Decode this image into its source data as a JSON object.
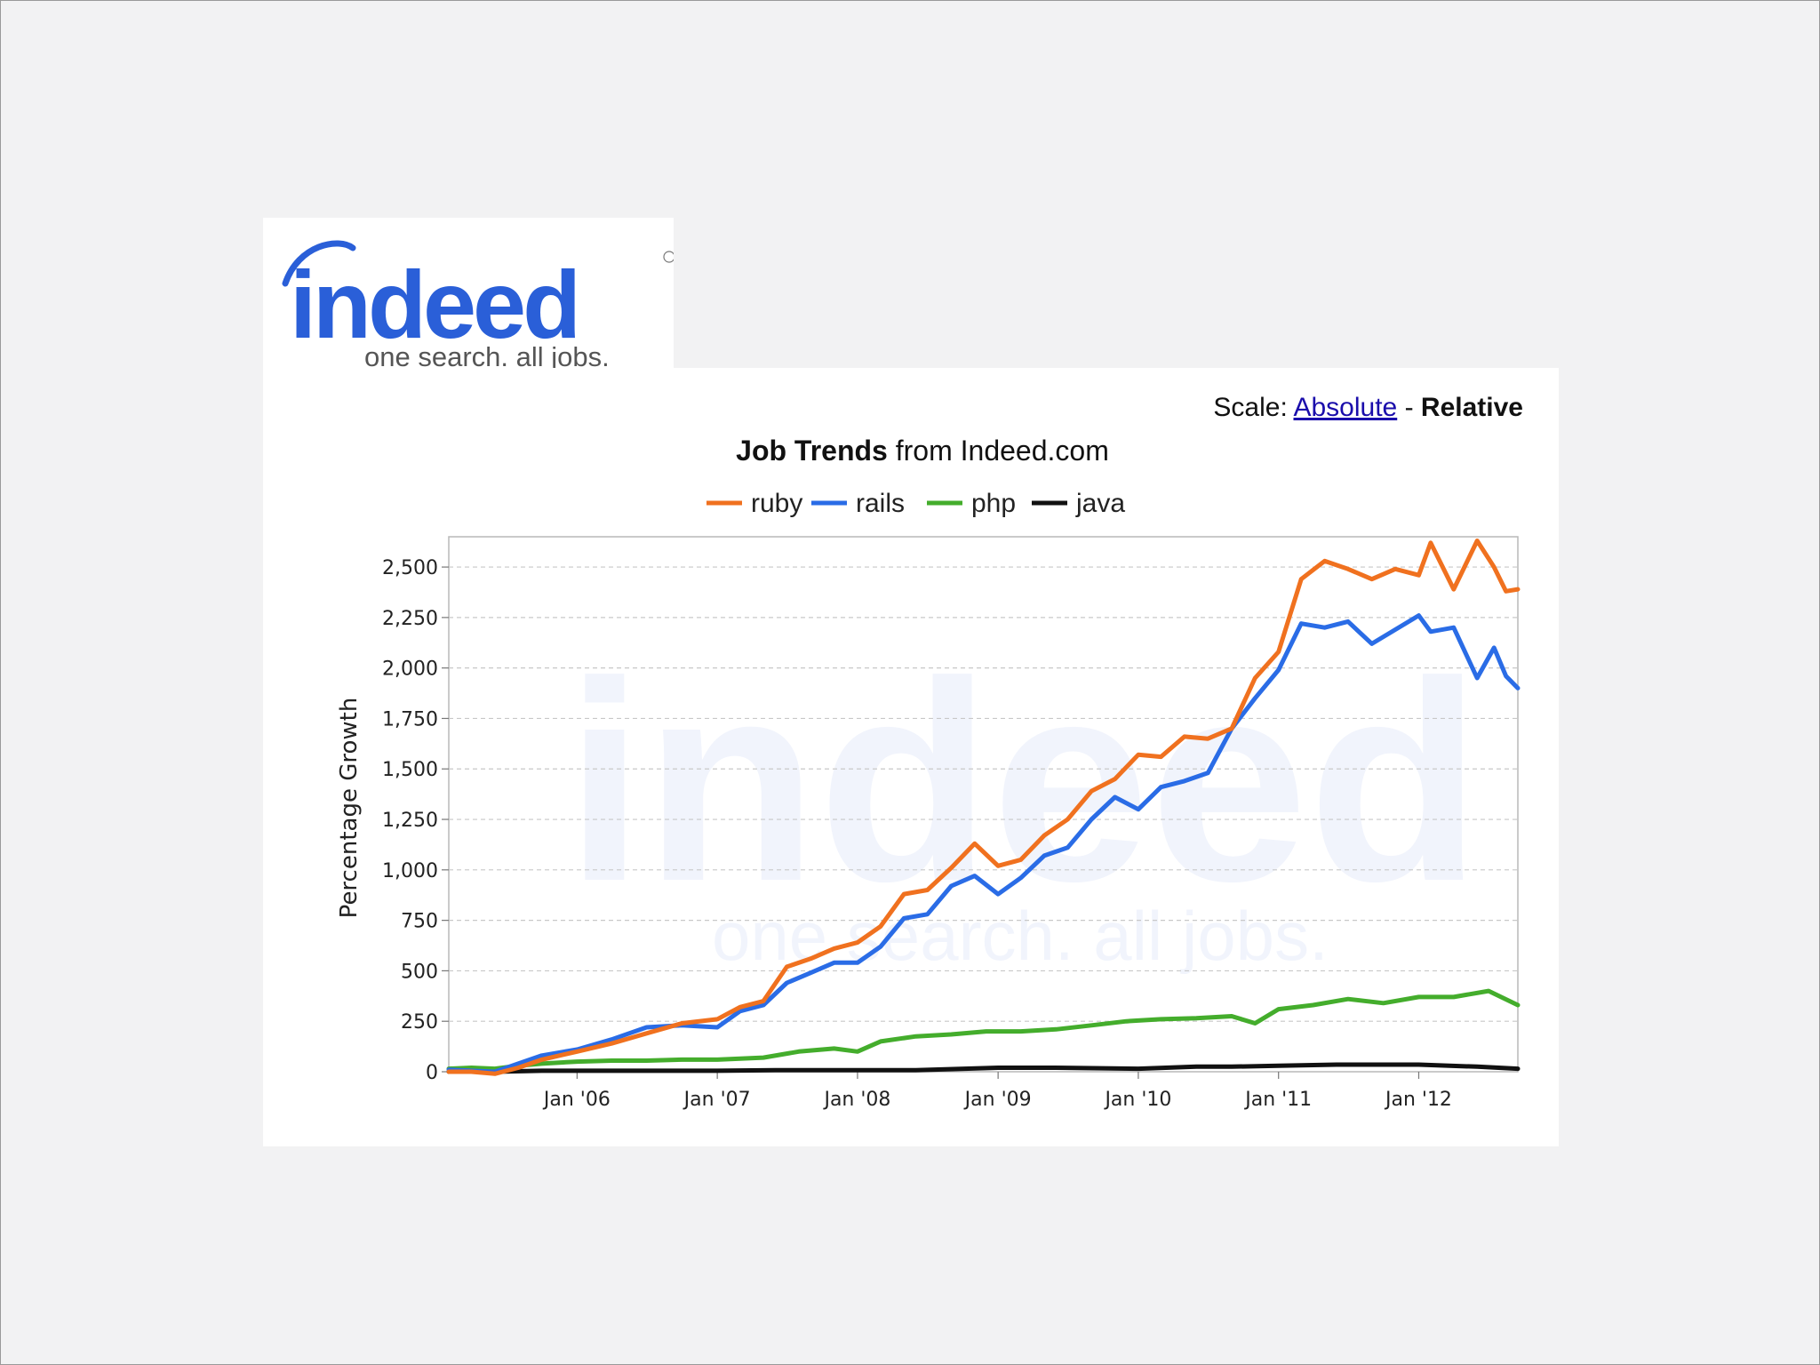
{
  "logo": {
    "wordmark": "indeed",
    "tagline": "one search. all jobs."
  },
  "scale": {
    "label": "Scale:",
    "absolute": "Absolute",
    "separator": "-",
    "relative": "Relative"
  },
  "chart_data": {
    "type": "line",
    "title_bold": "Job Trends",
    "title_rest": "from Indeed.com",
    "ylabel": "Percentage Growth",
    "xlabel": "",
    "ylim": [
      0,
      2650
    ],
    "xlim": [
      "2005-02-01",
      "2012-09-15"
    ],
    "grid": true,
    "legend_position": "top",
    "y_ticks": [
      0,
      250,
      500,
      750,
      1000,
      1250,
      1500,
      1750,
      2000,
      2250,
      2500
    ],
    "y_tick_labels": [
      "0",
      "250",
      "500",
      "750",
      "1,000",
      "1,250",
      "1,500",
      "1,750",
      "2,000",
      "2,250",
      "2,500"
    ],
    "x_ticks": [
      "2006-01-01",
      "2007-01-01",
      "2008-01-01",
      "2009-01-01",
      "2010-01-01",
      "2011-01-01",
      "2012-01-01"
    ],
    "x_tick_labels": [
      "Jan '06",
      "Jan '07",
      "Jan '08",
      "Jan '09",
      "Jan '10",
      "Jan '11",
      "Jan '12"
    ],
    "series": [
      {
        "name": "ruby",
        "color": "#f0711f",
        "points": [
          [
            "2005-02-01",
            0
          ],
          [
            "2005-04-01",
            0
          ],
          [
            "2005-06-01",
            -10
          ],
          [
            "2005-08-01",
            20
          ],
          [
            "2005-10-01",
            60
          ],
          [
            "2006-01-01",
            100
          ],
          [
            "2006-04-01",
            140
          ],
          [
            "2006-07-01",
            190
          ],
          [
            "2006-10-01",
            240
          ],
          [
            "2007-01-01",
            260
          ],
          [
            "2007-03-01",
            320
          ],
          [
            "2007-05-01",
            350
          ],
          [
            "2007-07-01",
            520
          ],
          [
            "2007-09-01",
            560
          ],
          [
            "2007-11-01",
            610
          ],
          [
            "2008-01-01",
            640
          ],
          [
            "2008-03-01",
            720
          ],
          [
            "2008-05-01",
            880
          ],
          [
            "2008-07-01",
            900
          ],
          [
            "2008-09-01",
            1010
          ],
          [
            "2008-11-01",
            1130
          ],
          [
            "2009-01-01",
            1020
          ],
          [
            "2009-03-01",
            1050
          ],
          [
            "2009-05-01",
            1170
          ],
          [
            "2009-07-01",
            1250
          ],
          [
            "2009-09-01",
            1390
          ],
          [
            "2009-11-01",
            1450
          ],
          [
            "2010-01-01",
            1570
          ],
          [
            "2010-03-01",
            1560
          ],
          [
            "2010-05-01",
            1660
          ],
          [
            "2010-07-01",
            1650
          ],
          [
            "2010-09-01",
            1700
          ],
          [
            "2010-11-01",
            1950
          ],
          [
            "2011-01-01",
            2080
          ],
          [
            "2011-03-01",
            2440
          ],
          [
            "2011-05-01",
            2530
          ],
          [
            "2011-07-01",
            2490
          ],
          [
            "2011-09-01",
            2440
          ],
          [
            "2011-11-01",
            2490
          ],
          [
            "2012-01-01",
            2460
          ],
          [
            "2012-02-01",
            2620
          ],
          [
            "2012-04-01",
            2390
          ],
          [
            "2012-06-01",
            2630
          ],
          [
            "2012-07-15",
            2500
          ],
          [
            "2012-08-15",
            2380
          ],
          [
            "2012-09-15",
            2390
          ]
        ]
      },
      {
        "name": "rails",
        "color": "#2a6ce6",
        "points": [
          [
            "2005-02-01",
            10
          ],
          [
            "2005-04-01",
            5
          ],
          [
            "2005-06-01",
            0
          ],
          [
            "2005-08-01",
            40
          ],
          [
            "2005-10-01",
            80
          ],
          [
            "2006-01-01",
            110
          ],
          [
            "2006-04-01",
            160
          ],
          [
            "2006-07-01",
            220
          ],
          [
            "2006-10-01",
            230
          ],
          [
            "2007-01-01",
            220
          ],
          [
            "2007-03-01",
            300
          ],
          [
            "2007-05-01",
            330
          ],
          [
            "2007-07-01",
            440
          ],
          [
            "2007-09-01",
            490
          ],
          [
            "2007-11-01",
            540
          ],
          [
            "2008-01-01",
            540
          ],
          [
            "2008-03-01",
            620
          ],
          [
            "2008-05-01",
            760
          ],
          [
            "2008-07-01",
            780
          ],
          [
            "2008-09-01",
            920
          ],
          [
            "2008-11-01",
            970
          ],
          [
            "2009-01-01",
            880
          ],
          [
            "2009-03-01",
            960
          ],
          [
            "2009-05-01",
            1070
          ],
          [
            "2009-07-01",
            1110
          ],
          [
            "2009-09-01",
            1250
          ],
          [
            "2009-11-01",
            1360
          ],
          [
            "2010-01-01",
            1300
          ],
          [
            "2010-03-01",
            1410
          ],
          [
            "2010-05-01",
            1440
          ],
          [
            "2010-07-01",
            1480
          ],
          [
            "2010-09-01",
            1700
          ],
          [
            "2010-11-01",
            1850
          ],
          [
            "2011-01-01",
            1990
          ],
          [
            "2011-03-01",
            2220
          ],
          [
            "2011-05-01",
            2200
          ],
          [
            "2011-07-01",
            2230
          ],
          [
            "2011-09-01",
            2120
          ],
          [
            "2011-11-01",
            2190
          ],
          [
            "2012-01-01",
            2260
          ],
          [
            "2012-02-01",
            2180
          ],
          [
            "2012-04-01",
            2200
          ],
          [
            "2012-06-01",
            1950
          ],
          [
            "2012-07-15",
            2100
          ],
          [
            "2012-08-15",
            1960
          ],
          [
            "2012-09-15",
            1900
          ]
        ]
      },
      {
        "name": "php",
        "color": "#44ad2c",
        "points": [
          [
            "2005-02-01",
            15
          ],
          [
            "2005-04-01",
            20
          ],
          [
            "2005-06-01",
            15
          ],
          [
            "2005-08-01",
            30
          ],
          [
            "2005-10-01",
            40
          ],
          [
            "2006-01-01",
            50
          ],
          [
            "2006-04-01",
            55
          ],
          [
            "2006-07-01",
            55
          ],
          [
            "2006-10-01",
            60
          ],
          [
            "2007-01-01",
            60
          ],
          [
            "2007-05-01",
            70
          ],
          [
            "2007-08-01",
            100
          ],
          [
            "2007-11-01",
            115
          ],
          [
            "2008-01-01",
            100
          ],
          [
            "2008-03-01",
            150
          ],
          [
            "2008-06-01",
            175
          ],
          [
            "2008-09-01",
            185
          ],
          [
            "2008-12-01",
            200
          ],
          [
            "2009-03-01",
            200
          ],
          [
            "2009-06-01",
            210
          ],
          [
            "2009-09-01",
            230
          ],
          [
            "2009-12-01",
            250
          ],
          [
            "2010-03-01",
            260
          ],
          [
            "2010-06-01",
            265
          ],
          [
            "2010-09-01",
            275
          ],
          [
            "2010-11-01",
            240
          ],
          [
            "2011-01-01",
            310
          ],
          [
            "2011-04-01",
            330
          ],
          [
            "2011-07-01",
            360
          ],
          [
            "2011-10-01",
            340
          ],
          [
            "2012-01-01",
            370
          ],
          [
            "2012-04-01",
            370
          ],
          [
            "2012-07-01",
            400
          ],
          [
            "2012-09-15",
            330
          ]
        ]
      },
      {
        "name": "java",
        "color": "#111111",
        "points": [
          [
            "2005-02-01",
            0
          ],
          [
            "2005-06-01",
            0
          ],
          [
            "2005-10-01",
            5
          ],
          [
            "2006-01-01",
            5
          ],
          [
            "2006-06-01",
            5
          ],
          [
            "2007-01-01",
            5
          ],
          [
            "2007-06-01",
            8
          ],
          [
            "2008-01-01",
            8
          ],
          [
            "2008-06-01",
            8
          ],
          [
            "2009-01-01",
            20
          ],
          [
            "2009-06-01",
            20
          ],
          [
            "2010-01-01",
            15
          ],
          [
            "2010-06-01",
            25
          ],
          [
            "2010-09-01",
            25
          ],
          [
            "2011-01-01",
            30
          ],
          [
            "2011-06-01",
            35
          ],
          [
            "2012-01-01",
            35
          ],
          [
            "2012-06-01",
            25
          ],
          [
            "2012-09-15",
            15
          ]
        ]
      }
    ]
  }
}
